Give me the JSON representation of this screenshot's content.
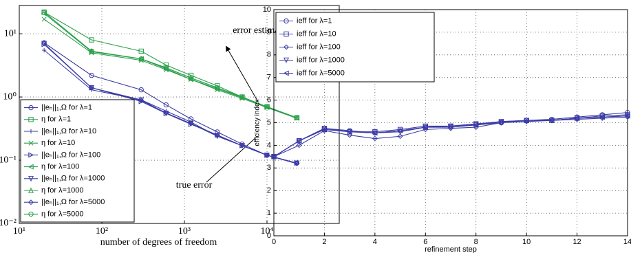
{
  "chart_data": [
    {
      "type": "line",
      "log_x": true,
      "log_y": true,
      "grid": true,
      "xlabel": "number of degrees of freedom",
      "xlim": [
        10,
        75000
      ],
      "ylim": [
        0.01,
        28
      ],
      "xticks": [
        {
          "value": 10,
          "label": "10¹"
        },
        {
          "value": 100,
          "label": "10²"
        },
        {
          "value": 1000,
          "label": "10³"
        },
        {
          "value": 10000,
          "label": "10⁴"
        }
      ],
      "yticks": [
        {
          "value": 0.01,
          "label": "10⁻²"
        },
        {
          "value": 0.1,
          "label": "10⁻¹"
        },
        {
          "value": 1,
          "label": "10⁰"
        },
        {
          "value": 10,
          "label": "10¹"
        }
      ],
      "legend": "lower left",
      "annotations": [
        "error estimator η",
        "true error"
      ],
      "x": [
        20,
        75,
        300,
        600,
        1200,
        2500,
        5000,
        10000,
        23000
      ],
      "series": [
        {
          "name": "||eₕ||₁,Ω for λ=1",
          "color": "#3b3ba6",
          "marker": "circle",
          "values": [
            7.2,
            2.2,
            1.3,
            0.75,
            0.45,
            0.28,
            0.18,
            0.12,
            0.09
          ]
        },
        {
          "name": "η for  λ=1",
          "color": "#2aa04a",
          "marker": "square",
          "values": [
            22,
            8.0,
            5.3,
            3.2,
            2.2,
            1.5,
            1.0,
            0.7,
            0.47
          ]
        },
        {
          "name": "||eₕ||₁,Ω for λ=10",
          "color": "#3b3ba6",
          "marker": "plus",
          "values": [
            5.5,
            1.3,
            0.9,
            0.6,
            0.4,
            0.24,
            0.17,
            0.12,
            0.088
          ]
        },
        {
          "name": "η for λ=10",
          "color": "#2aa04a",
          "marker": "cross",
          "values": [
            17,
            5.0,
            3.8,
            2.7,
            1.9,
            1.3,
            0.95,
            0.68,
            0.46
          ]
        },
        {
          "name": "||eₕ||₁,Ω for λ=100",
          "color": "#3b3ba6",
          "marker": "tri-right",
          "values": [
            6.8,
            1.4,
            0.85,
            0.55,
            0.37,
            0.25,
            0.17,
            0.12,
            0.09
          ]
        },
        {
          "name": "η for λ=100",
          "color": "#2aa04a",
          "marker": "tri-left",
          "values": [
            21,
            5.2,
            4.0,
            2.8,
            1.9,
            1.35,
            0.98,
            0.7,
            0.47
          ]
        },
        {
          "name": "||eₕ||₁,Ω for λ=1000",
          "color": "#3b3ba6",
          "marker": "tri-down",
          "values": [
            7,
            1.4,
            0.9,
            0.55,
            0.38,
            0.24,
            0.17,
            0.12,
            0.09
          ]
        },
        {
          "name": "η for λ=1000",
          "color": "#2aa04a",
          "marker": "tri-up",
          "values": [
            22,
            5.3,
            4.0,
            2.9,
            2.0,
            1.4,
            1.0,
            0.7,
            0.47
          ]
        },
        {
          "name": "||eₕ||₁,Ω for λ=5000",
          "color": "#3b3ba6",
          "marker": "diamond",
          "values": [
            7,
            1.4,
            0.88,
            0.56,
            0.38,
            0.25,
            0.17,
            0.12,
            0.09
          ]
        },
        {
          "name": "η for λ=5000",
          "color": "#2aa04a",
          "marker": "circle",
          "values": [
            22,
            5.3,
            4.0,
            2.9,
            2.0,
            1.4,
            1.0,
            0.7,
            0.47
          ]
        }
      ]
    },
    {
      "type": "line",
      "log_x": false,
      "log_y": false,
      "grid": true,
      "xlabel": "refinement step",
      "ylabel": "efficiency index",
      "xlim": [
        0,
        14
      ],
      "ylim": [
        0,
        10
      ],
      "xticks": [
        0,
        2,
        4,
        6,
        8,
        10,
        12,
        14
      ],
      "yticks": [
        0,
        1,
        2,
        3,
        4,
        5,
        6,
        7,
        8,
        9,
        10
      ],
      "legend": "upper left",
      "x": [
        0,
        1,
        2,
        3,
        4,
        5,
        6,
        7,
        8,
        9,
        10,
        11,
        12,
        13,
        14
      ],
      "series": [
        {
          "name": "ieff for λ=1",
          "color": "#3b3ba6",
          "marker": "circle",
          "values": [
            3.5,
            4.2,
            4.75,
            4.65,
            4.55,
            4.65,
            4.8,
            4.85,
            4.95,
            5.0,
            5.1,
            5.15,
            5.25,
            5.35,
            5.45
          ]
        },
        {
          "name": "ieff for λ=10",
          "color": "#3b3ba6",
          "marker": "square",
          "values": [
            3.5,
            4.2,
            4.7,
            4.6,
            4.6,
            4.7,
            4.85,
            4.85,
            4.95,
            5.05,
            5.1,
            5.1,
            5.2,
            5.3,
            5.35
          ]
        },
        {
          "name": "ieff for λ=100",
          "color": "#3b3ba6",
          "marker": "diamond",
          "values": [
            3.5,
            4.0,
            4.65,
            4.45,
            4.3,
            4.4,
            4.7,
            4.75,
            4.8,
            5.0,
            5.05,
            5.1,
            5.15,
            5.2,
            5.25
          ]
        },
        {
          "name": "ieff for λ=1000",
          "color": "#3b3ba6",
          "marker": "tri-down",
          "values": [
            3.5,
            4.2,
            4.75,
            4.6,
            4.55,
            4.6,
            4.8,
            4.8,
            4.9,
            5.0,
            5.1,
            5.1,
            5.2,
            5.25,
            5.3
          ]
        },
        {
          "name": "ieff for λ=5000",
          "color": "#3b3ba6",
          "marker": "tri-left",
          "values": [
            3.5,
            4.2,
            4.7,
            4.6,
            4.55,
            4.65,
            4.8,
            4.85,
            4.9,
            5.05,
            5.1,
            5.1,
            5.2,
            5.25,
            5.3
          ]
        }
      ]
    }
  ]
}
